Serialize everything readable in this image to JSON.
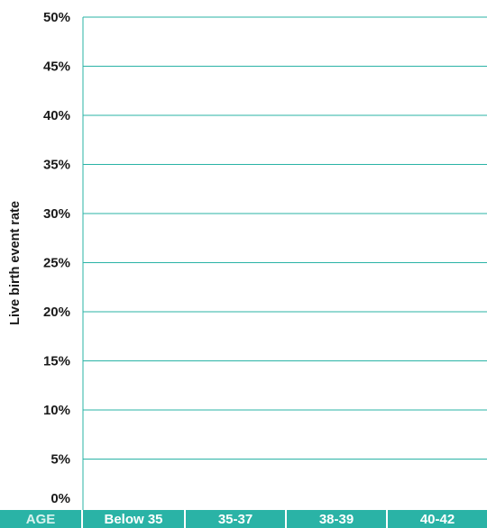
{
  "chart_data": {
    "type": "bar",
    "title": "",
    "ylabel": "Live birth event rate",
    "xlabel": "AGE",
    "categories": [
      "Below 35",
      "35-37",
      "38-39",
      "40-42"
    ],
    "ylim": [
      0,
      50
    ],
    "yticks": [
      0,
      5,
      10,
      15,
      20,
      25,
      30,
      35,
      40,
      45,
      50
    ],
    "ytick_labels": [
      "0%",
      "5%",
      "10%",
      "15%",
      "20%",
      "25%",
      "30%",
      "35%",
      "40%",
      "45%",
      "50%"
    ],
    "series": [],
    "grid": true,
    "colors": {
      "accent": "#2ab3a6",
      "gridline": "#2ab3a6",
      "axis_label_band_text": "#ffffff",
      "age_label_text": "#d9f3ef",
      "tick_text": "#1a1a1a"
    }
  }
}
